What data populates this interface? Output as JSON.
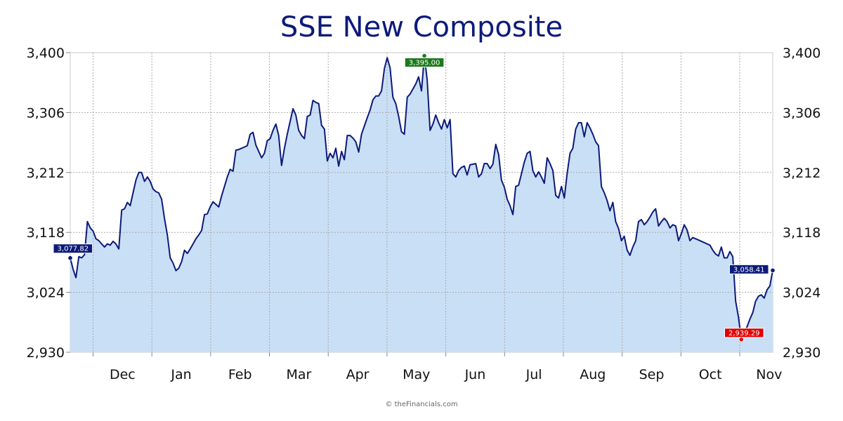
{
  "chart_data": {
    "type": "area",
    "title": "SSE New Composite",
    "credit": "© theFinancials.com",
    "y_ticks": [
      "3,400",
      "3,306",
      "3,212",
      "3,118",
      "3,024",
      "2,930"
    ],
    "y_tick_values": [
      3400,
      3306,
      3212,
      3118,
      3024,
      2930
    ],
    "ylim": [
      2930,
      3400
    ],
    "x_month_labels": [
      "Dec",
      "Jan",
      "Feb",
      "Mar",
      "Apr",
      "May",
      "Jun",
      "Jul",
      "Aug",
      "Sep",
      "Oct",
      "Nov"
    ],
    "grid": true,
    "colors": {
      "line": "#0d1a7a",
      "fill": "#c9dff5",
      "grid": "#aaaaaa",
      "start_flag": "#0d1a7a",
      "high_flag": "#1a7a1a",
      "low_flag": "#e00000",
      "end_flag": "#0d1a7a"
    },
    "annotations": {
      "start": {
        "label": "3,077.82",
        "value": 3077.82
      },
      "high": {
        "label": "3,395.00",
        "value": 3395.0
      },
      "low": {
        "label": "2,939.29",
        "value": 2939.29
      },
      "end": {
        "label": "3,058.41",
        "value": 3058.41
      }
    },
    "series": [
      {
        "values": [
          3077.8,
          3060,
          3047,
          3080,
          3078,
          3083,
          3135,
          3125,
          3120,
          3108,
          3105,
          3100,
          3095,
          3100,
          3098,
          3104,
          3100,
          3092,
          3153,
          3155,
          3165,
          3160,
          3180,
          3200,
          3212,
          3212,
          3198,
          3205,
          3198,
          3186,
          3182,
          3180,
          3170,
          3140,
          3114,
          3078,
          3070,
          3058,
          3062,
          3072,
          3090,
          3085,
          3092,
          3100,
          3108,
          3114,
          3121,
          3146,
          3147,
          3158,
          3166,
          3162,
          3158,
          3175,
          3190,
          3205,
          3217,
          3214,
          3247,
          3248,
          3250,
          3252,
          3254,
          3272,
          3275,
          3255,
          3245,
          3235,
          3242,
          3262,
          3265,
          3278,
          3288,
          3270,
          3223,
          3250,
          3272,
          3292,
          3312,
          3302,
          3278,
          3270,
          3265,
          3300,
          3302,
          3325,
          3322,
          3320,
          3286,
          3280,
          3230,
          3242,
          3235,
          3250,
          3222,
          3245,
          3232,
          3270,
          3270,
          3266,
          3260,
          3244,
          3272,
          3285,
          3298,
          3310,
          3326,
          3332,
          3332,
          3340,
          3375,
          3392,
          3376,
          3330,
          3320,
          3300,
          3276,
          3272,
          3330,
          3335,
          3343,
          3351,
          3362,
          3340,
          3395,
          3357,
          3278,
          3288,
          3302,
          3290,
          3280,
          3295,
          3282,
          3295,
          3210,
          3205,
          3215,
          3220,
          3222,
          3208,
          3224,
          3225,
          3226,
          3205,
          3210,
          3226,
          3226,
          3218,
          3225,
          3256,
          3240,
          3200,
          3189,
          3170,
          3160,
          3146,
          3190,
          3192,
          3210,
          3228,
          3242,
          3245,
          3215,
          3205,
          3213,
          3205,
          3195,
          3235,
          3226,
          3215,
          3176,
          3172,
          3190,
          3172,
          3210,
          3242,
          3250,
          3280,
          3290,
          3290,
          3268,
          3290,
          3282,
          3272,
          3260,
          3254,
          3190,
          3180,
          3168,
          3152,
          3165,
          3135,
          3124,
          3105,
          3112,
          3090,
          3082,
          3095,
          3105,
          3135,
          3138,
          3130,
          3135,
          3142,
          3150,
          3155,
          3128,
          3135,
          3140,
          3135,
          3125,
          3130,
          3128,
          3105,
          3116,
          3130,
          3122,
          3105,
          3110,
          3108,
          3106,
          3104,
          3102,
          3100,
          3098,
          3090,
          3084,
          3081,
          3095,
          3078,
          3078,
          3088,
          3080,
          3010,
          2985,
          2950,
          2960,
          2970,
          2982,
          2992,
          3010,
          3018,
          3020,
          3015,
          3028,
          3034,
          3058.4
        ]
      }
    ]
  }
}
